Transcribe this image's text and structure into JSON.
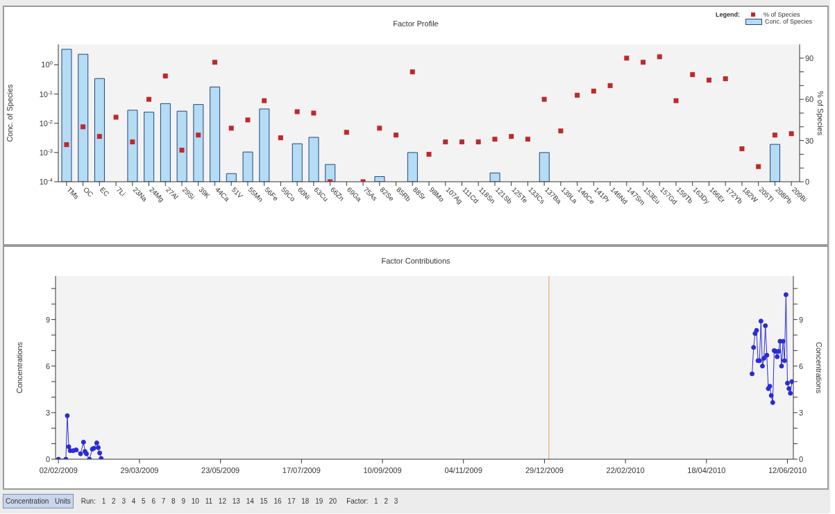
{
  "chart_data": [
    {
      "type": "bar",
      "title": "Factor Profile",
      "legend": "top right",
      "legend_title": "Legend:",
      "ylabel": "Conc. of Species",
      "y2label": "% of Species",
      "log": "y",
      "marker": "square",
      "categories": [
        "TMs",
        "OC",
        "EC",
        "7Li",
        "23Na",
        "24Mg",
        "27Al",
        "29Si",
        "39K",
        "44Ca",
        "51V",
        "55Mn",
        "56Fe",
        "59Co",
        "60Ni",
        "63Cu",
        "66Zn",
        "69Ga",
        "75As",
        "82Se",
        "85Rb",
        "88Sr",
        "98Mo",
        "107Ag",
        "111Cd",
        "118Sn",
        "121Sb",
        "125Te",
        "133Cs",
        "137Ba",
        "139La",
        "140Ce",
        "141Pr",
        "146Nd",
        "147Sm",
        "153Eu",
        "157Gd",
        "159Tb",
        "163Dy",
        "166Er",
        "172Yb",
        "182W",
        "205Tl",
        "208Pb",
        "209Bi"
      ],
      "series": [
        {
          "name": "% of Species",
          "type": "scatter",
          "axis": "y2",
          "color": "#c0282d",
          "values": [
            27,
            40,
            33,
            47,
            29,
            60,
            77,
            23,
            34,
            87,
            39,
            45,
            59,
            32,
            51,
            50,
            0,
            36,
            0,
            39,
            34,
            80,
            20,
            29,
            29,
            29,
            31,
            33,
            31,
            60,
            37,
            63,
            66,
            70,
            90,
            87,
            91,
            59,
            78,
            74,
            75,
            24,
            11,
            34,
            35
          ]
        },
        {
          "name": "Conc. of Species",
          "color": "#b4dcf4",
          "values": [
            3.4,
            2.3,
            0.34,
            null,
            0.028,
            0.024,
            0.047,
            0.026,
            0.044,
            0.175,
            0.00019,
            0.00104,
            0.031,
            null,
            0.002,
            0.0033,
            0.00039,
            null,
            null,
            0.00015,
            null,
            0.001,
            null,
            null,
            null,
            null,
            0.0002,
            null,
            null,
            0.001,
            null,
            null,
            null,
            null,
            null,
            null,
            null,
            null,
            null,
            null,
            null,
            null,
            null,
            0.0019,
            null
          ]
        }
      ],
      "ylim": [
        0.0001,
        5
      ],
      "yticks": [
        {
          "value": 0.0001,
          "label": "10$^{-4}$"
        },
        {
          "value": 0.001,
          "label": "10$^{-3}$"
        },
        {
          "value": 0.01,
          "label": "10$^{-2}$"
        },
        {
          "value": 0.1,
          "label": "10$^{-1}$"
        },
        {
          "value": 1,
          "label": "10$^{0}$"
        }
      ],
      "y2lim": [
        0,
        100
      ],
      "y2ticks": [
        0,
        {
          "value": 10,
          "label": null
        },
        {
          "value": 20,
          "label": null
        },
        30,
        {
          "value": 40,
          "label": null
        },
        {
          "value": 50,
          "label": null
        },
        60,
        {
          "value": 70,
          "label": null
        },
        {
          "value": 80,
          "label": null
        },
        90
      ]
    },
    {
      "type": "line",
      "title": "Factor Contributions",
      "ylabel": "Concentrations",
      "y2label": "Concentrations",
      "marker": "circle",
      "line_style": "solid",
      "series": [
        {
          "color": "#2b2bd6",
          "x": [
            "2009-02-02",
            "2009-02-07",
            "2009-02-08",
            "2009-02-09",
            "2009-02-10",
            "2009-02-12",
            "2009-02-14",
            "2009-02-17",
            "2009-02-19",
            "2009-02-20",
            "2009-02-21",
            "2009-02-23",
            "2009-02-25",
            "2009-02-26",
            "2009-02-28",
            "2009-03-01",
            "2009-03-02",
            "2009-03-03"
          ],
          "values": [
            0,
            0,
            2.8,
            0.8,
            0.55,
            0.55,
            0.6,
            0.35,
            1.1,
            0.5,
            0.35,
            0,
            0.65,
            0.7,
            1.05,
            0.75,
            0.4,
            0.05
          ]
        },
        {
          "color": "#2b2bd6",
          "x": [
            "2010-05-19",
            "2010-05-20",
            "2010-05-21",
            "2010-05-22",
            "2010-05-23",
            "2010-05-24",
            "2010-05-25",
            "2010-05-26",
            "2010-05-27",
            "2010-05-28",
            "2010-05-29",
            "2010-05-30",
            "2010-05-31",
            "2010-06-01",
            "2010-06-02",
            "2010-06-03",
            "2010-06-04",
            "2010-06-05",
            "2010-06-06",
            "2010-06-07",
            "2010-06-08",
            "2010-06-09",
            "2010-06-10",
            "2010-06-11",
            "2010-06-12",
            "2010-06-13",
            "2010-06-14",
            "2010-06-15"
          ],
          "values": [
            5.5,
            7.2,
            8.1,
            8.3,
            6.35,
            6.35,
            8.9,
            6,
            6.5,
            8.6,
            6.7,
            4.55,
            4.7,
            4.1,
            3.65,
            7,
            6.95,
            6.6,
            6.95,
            7.6,
            6,
            7.6,
            6.35,
            10.6,
            4.9,
            4.55,
            4.25,
            5
          ]
        }
      ],
      "xlim": [
        "2009-01-31",
        "2010-06-16"
      ],
      "xticks": [
        {
          "value": "2009-02-02",
          "label": "02/02/2009"
        },
        {
          "value": "2009-03-29",
          "label": "29/03/2009"
        },
        {
          "value": "2009-05-23",
          "label": "23/05/2009"
        },
        {
          "value": "2009-07-17",
          "label": "17/07/2009"
        },
        {
          "value": "2009-09-10",
          "label": "10/09/2009"
        },
        {
          "value": "2009-11-04",
          "label": "04/11/2009"
        },
        {
          "value": "2009-12-29",
          "label": "29/12/2009"
        },
        {
          "value": "2010-02-22",
          "label": "22/02/2010"
        },
        {
          "value": "2010-04-18",
          "label": "18/04/2010"
        },
        {
          "value": "2010-06-12",
          "label": "12/06/2010"
        }
      ],
      "ylim": [
        0,
        11.8
      ],
      "yticks": [
        0,
        {
          "value": 1,
          "label": null
        },
        {
          "value": 2,
          "label": null
        },
        3,
        {
          "value": 4,
          "label": null
        },
        {
          "value": 5,
          "label": null
        },
        6,
        {
          "value": 7,
          "label": null
        },
        {
          "value": 8,
          "label": null
        },
        9,
        {
          "value": 10,
          "label": null
        },
        {
          "value": 11,
          "label": null
        }
      ],
      "y2lim": [
        0,
        11.8
      ],
      "y2ticks": [
        0,
        {
          "value": 1,
          "label": null
        },
        {
          "value": 2,
          "label": null
        },
        3,
        {
          "value": 4,
          "label": null
        },
        {
          "value": 5,
          "label": null
        },
        6,
        {
          "value": 7,
          "label": null
        },
        {
          "value": 8,
          "label": null
        },
        9,
        {
          "value": 10,
          "label": null
        },
        {
          "value": 11,
          "label": null
        }
      ],
      "ref_lines": [
        {
          "axis": "x",
          "value": "2010-01-01",
          "color": "#e8b98a"
        }
      ]
    },
    {
      "type": "other",
      "annotations": [
        "Concentration Units",
        "Run: 1 2 3 4 5 6 7 8 9 10 11 12 13 14 15 16 17 18 19 20",
        "Factor: 1 2 3"
      ]
    }
  ]
}
